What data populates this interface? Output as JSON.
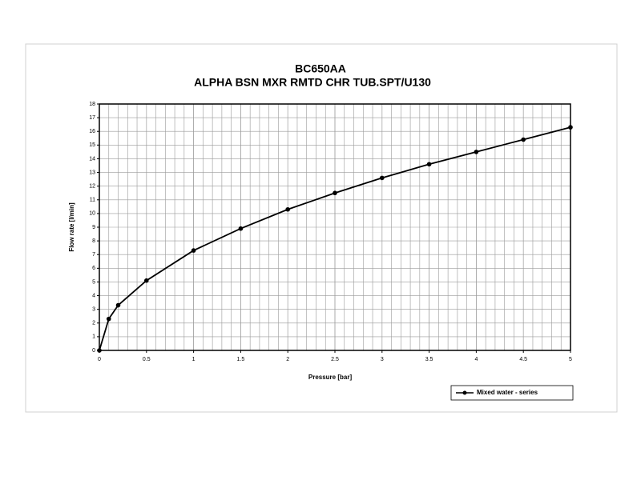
{
  "chart_data": {
    "type": "line",
    "title": "BC650AA",
    "subtitle": "ALPHA BSN MXR RMTD CHR TUB.SPT/U130",
    "x_label": "Pressure [bar]",
    "y_label": "Flow rate [l/min]",
    "x": [
      0,
      0.1,
      0.2,
      0.5,
      1,
      1.5,
      2,
      2.5,
      3,
      3.5,
      4,
      4.5,
      5
    ],
    "series": [
      {
        "name": "Mixed water - series",
        "color": "#000000",
        "values": [
          0,
          2.3,
          3.3,
          5.1,
          7.3,
          8.9,
          10.3,
          11.5,
          12.6,
          13.6,
          14.5,
          15.4,
          16.3
        ]
      }
    ],
    "xlim": [
      0,
      5
    ],
    "xticks": [
      0,
      0.5,
      1,
      1.5,
      2,
      2.5,
      3,
      3.5,
      4,
      4.5,
      5
    ],
    "x_minor_step": 0.1,
    "ylim": [
      0,
      18
    ],
    "yticks": [
      0,
      1,
      2,
      3,
      4,
      5,
      6,
      7,
      8,
      9,
      10,
      11,
      12,
      13,
      14,
      15,
      16,
      17,
      18
    ],
    "grid": true,
    "legend": "bottom-right"
  }
}
